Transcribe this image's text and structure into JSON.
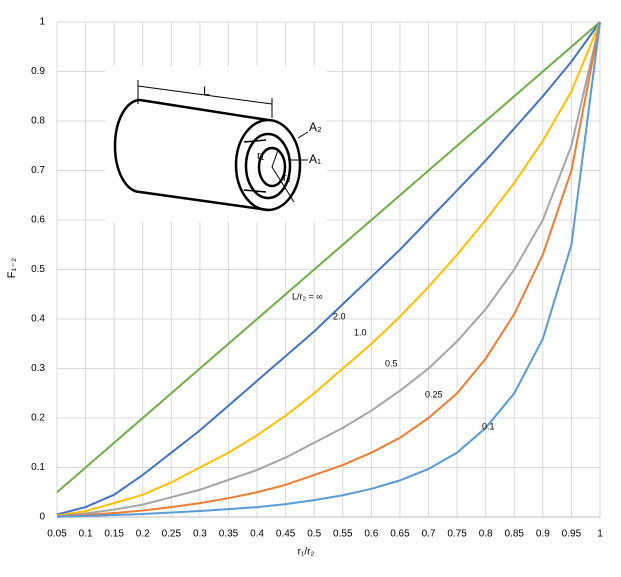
{
  "chart_data": {
    "type": "line",
    "x_label": "r₁/r₂",
    "y_label": "F₁₋₂",
    "x": [
      0.05,
      0.1,
      0.15,
      0.2,
      0.25,
      0.3,
      0.35,
      0.4,
      0.45,
      0.5,
      0.55,
      0.6,
      0.65,
      0.7,
      0.75,
      0.8,
      0.85,
      0.9,
      0.95,
      1
    ],
    "series": [
      {
        "name": "L/r₂ = ∞",
        "color": "#70ad47",
        "values": [
          0.05,
          0.1,
          0.15,
          0.2,
          0.25,
          0.3,
          0.35,
          0.4,
          0.45,
          0.5,
          0.55,
          0.6,
          0.65,
          0.7,
          0.75,
          0.8,
          0.85,
          0.9,
          0.95,
          1
        ]
      },
      {
        "name": "2.0",
        "color": "#4472c4",
        "values": [
          0.005,
          0.02,
          0.045,
          0.085,
          0.13,
          0.175,
          0.225,
          0.275,
          0.325,
          0.375,
          0.43,
          0.485,
          0.54,
          0.6,
          0.66,
          0.72,
          0.785,
          0.85,
          0.92,
          1
        ]
      },
      {
        "name": "1.0",
        "color": "#ffc000",
        "values": [
          0.003,
          0.012,
          0.028,
          0.045,
          0.07,
          0.1,
          0.13,
          0.165,
          0.205,
          0.25,
          0.3,
          0.35,
          0.405,
          0.465,
          0.53,
          0.6,
          0.675,
          0.76,
          0.86,
          1
        ]
      },
      {
        "name": "0.5",
        "color": "#a5a5a5",
        "values": [
          0.002,
          0.007,
          0.015,
          0.025,
          0.04,
          0.055,
          0.075,
          0.095,
          0.12,
          0.15,
          0.18,
          0.215,
          0.255,
          0.3,
          0.355,
          0.42,
          0.5,
          0.6,
          0.75,
          1
        ]
      },
      {
        "name": "0.25",
        "color": "#ed7d31",
        "values": [
          0.001,
          0.004,
          0.008,
          0.013,
          0.02,
          0.028,
          0.038,
          0.05,
          0.065,
          0.085,
          0.105,
          0.13,
          0.16,
          0.2,
          0.25,
          0.32,
          0.41,
          0.53,
          0.7,
          1
        ]
      },
      {
        "name": "0.1",
        "color": "#5b9bd5",
        "values": [
          0.0005,
          0.002,
          0.004,
          0.006,
          0.009,
          0.012,
          0.016,
          0.02,
          0.026,
          0.034,
          0.044,
          0.057,
          0.074,
          0.097,
          0.13,
          0.18,
          0.25,
          0.36,
          0.55,
          1
        ]
      }
    ],
    "xlim": [
      0.05,
      1
    ],
    "xticks": [
      0.05,
      0.1,
      0.15,
      0.2,
      0.25,
      0.3,
      0.35,
      0.4,
      0.45,
      0.5,
      0.55,
      0.6,
      0.65,
      0.7,
      0.75,
      0.8,
      0.85,
      0.9,
      0.95,
      1
    ],
    "ylim": [
      0,
      1
    ],
    "yticks": [
      0,
      0.1,
      0.2,
      0.3,
      0.4,
      0.5,
      0.6,
      0.7,
      0.8,
      0.9,
      1
    ],
    "grid": true,
    "diagram": {
      "length": "L",
      "outer_area": "A₂",
      "inner_area": "A₁",
      "inner_radius": "r₁",
      "outer_radius": "r₂"
    }
  }
}
